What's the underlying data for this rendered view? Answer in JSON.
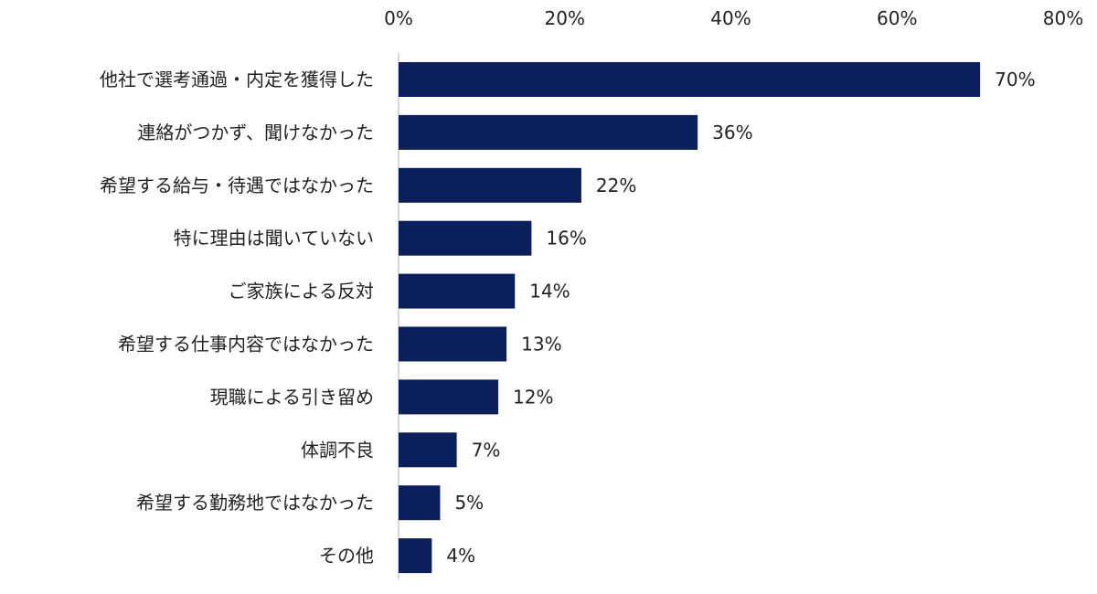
{
  "chart_data": {
    "type": "bar",
    "orientation": "horizontal",
    "title": "",
    "xlabel": "",
    "ylabel": "",
    "xlim": [
      0,
      80
    ],
    "tick_values": [
      0,
      20,
      40,
      60,
      80
    ],
    "tick_labels": [
      "0%",
      "20%",
      "40%",
      "60%",
      "80%"
    ],
    "categories": [
      "他社で選考通過・内定を獲得した",
      "連絡がつかず、聞けなかった",
      "希望する給与・待遇ではなかった",
      "特に理由は聞いていない",
      "ご家族による反対",
      "希望する仕事内容ではなかった",
      "現職による引き留め",
      "体調不良",
      "希望する勤務地ではなかった",
      "その他"
    ],
    "values": [
      70,
      36,
      22,
      16,
      14,
      13,
      12,
      7,
      5,
      4
    ],
    "value_labels": [
      "70%",
      "36%",
      "22%",
      "16%",
      "14%",
      "13%",
      "12%",
      "7%",
      "5%",
      "4%"
    ],
    "grid": false,
    "legend": "none",
    "bar_color": "#0b1f5c"
  }
}
